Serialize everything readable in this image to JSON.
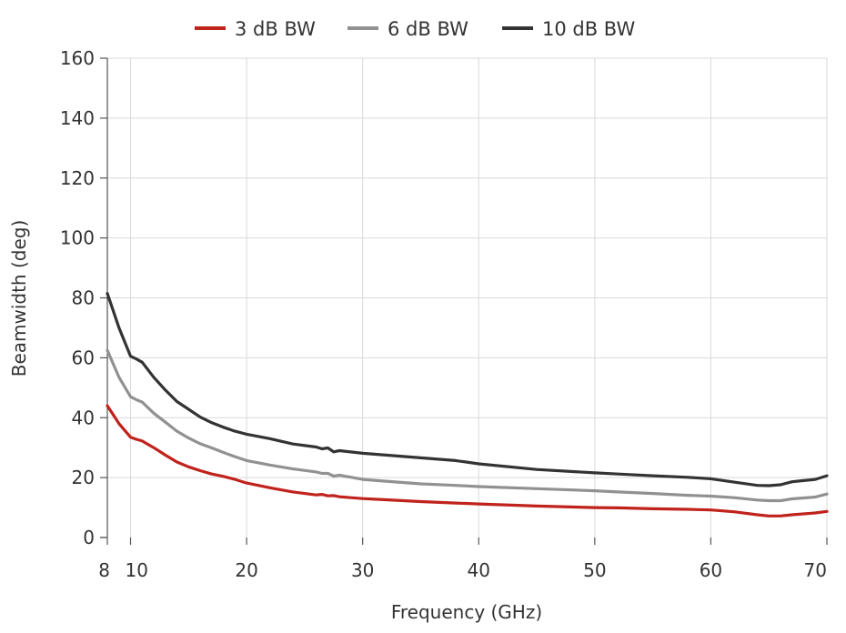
{
  "chart_data": {
    "type": "line",
    "xlabel": "Frequency (GHz)",
    "ylabel": "Beamwidth (deg)",
    "xlim": [
      8,
      70
    ],
    "ylim": [
      0,
      160
    ],
    "xticks": [
      8,
      10,
      20,
      30,
      40,
      50,
      60,
      70
    ],
    "yticks": [
      0,
      20,
      40,
      60,
      80,
      100,
      120,
      140,
      160
    ],
    "grid": true,
    "legend_position": "top-center",
    "series": [
      {
        "name": "3 dB BW",
        "color": "#c0221c",
        "x": [
          8,
          9,
          10,
          10.5,
          11,
          12,
          13,
          14,
          15,
          16,
          17,
          18,
          19,
          20,
          22,
          24,
          26,
          26.5,
          27,
          27.5,
          28,
          30,
          32,
          35,
          38,
          40,
          45,
          50,
          52,
          55,
          58,
          60,
          62,
          64,
          65,
          66,
          67,
          68,
          69,
          70
        ],
        "y": [
          44,
          38,
          33.5,
          32.8,
          32.2,
          30,
          27.5,
          25.2,
          23.6,
          22.3,
          21.2,
          20.4,
          19.4,
          18.2,
          16.6,
          15.2,
          14.2,
          14.4,
          13.9,
          14.0,
          13.6,
          13.0,
          12.6,
          12.0,
          11.5,
          11.2,
          10.5,
          10.0,
          9.9,
          9.6,
          9.4,
          9.2,
          8.6,
          7.6,
          7.2,
          7.2,
          7.6,
          7.9,
          8.2,
          8.7
        ]
      },
      {
        "name": "6 dB BW",
        "color": "#919191",
        "x": [
          8,
          9,
          10,
          10.5,
          11,
          12,
          13,
          14,
          15,
          16,
          17,
          18,
          19,
          20,
          22,
          24,
          26,
          26.5,
          27,
          27.5,
          28,
          30,
          32,
          35,
          38,
          40,
          45,
          50,
          52,
          55,
          58,
          60,
          62,
          64,
          65,
          66,
          67,
          68,
          69,
          70
        ],
        "y": [
          62.5,
          53.5,
          47,
          46,
          45.2,
          41.5,
          38.5,
          35.5,
          33.2,
          31.3,
          29.9,
          28.4,
          27,
          25.7,
          24.2,
          22.9,
          21.9,
          21.4,
          21.4,
          20.5,
          20.8,
          19.4,
          18.8,
          17.9,
          17.4,
          17.0,
          16.3,
          15.6,
          15.2,
          14.7,
          14.1,
          13.8,
          13.3,
          12.5,
          12.3,
          12.3,
          12.9,
          13.2,
          13.5,
          14.5
        ]
      },
      {
        "name": "10 dB BW",
        "color": "#333333",
        "x": [
          8,
          9,
          10,
          10.5,
          11,
          12,
          13,
          14,
          15,
          16,
          17,
          18,
          19,
          20,
          22,
          24,
          26,
          26.5,
          27,
          27.5,
          28,
          30,
          32,
          35,
          38,
          40,
          45,
          50,
          52,
          55,
          58,
          60,
          62,
          64,
          65,
          66,
          67,
          68,
          69,
          70
        ],
        "y": [
          81.5,
          70,
          60.5,
          59.6,
          58.5,
          53.5,
          49.2,
          45.4,
          42.8,
          40.2,
          38.3,
          36.8,
          35.5,
          34.5,
          33,
          31.2,
          30.2,
          29.6,
          29.9,
          28.6,
          29.0,
          28.1,
          27.5,
          26.6,
          25.7,
          24.6,
          22.7,
          21.6,
          21.2,
          20.6,
          20.1,
          19.6,
          18.5,
          17.4,
          17.3,
          17.6,
          18.6,
          19.0,
          19.4,
          20.6
        ]
      }
    ]
  }
}
